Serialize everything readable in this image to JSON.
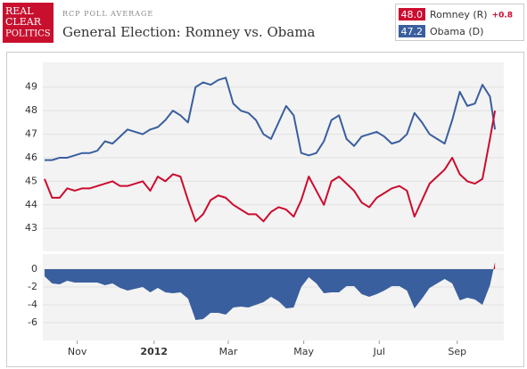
{
  "header": {
    "logo": [
      "REAL",
      "CLEAR",
      "POLITICS"
    ],
    "subtitle": "RCP POLL AVERAGE",
    "title": "General Election: Romney vs. Obama"
  },
  "chart_data": {
    "type": "line",
    "x": [
      0,
      6,
      12,
      18,
      24,
      30,
      36,
      42,
      48,
      54,
      60,
      66,
      72,
      78,
      84,
      90,
      96,
      102,
      108,
      114,
      120,
      126,
      132,
      138,
      144,
      150,
      156,
      162,
      168,
      174,
      180,
      186,
      192,
      198,
      204,
      210,
      216,
      222,
      228,
      234,
      240,
      246,
      252,
      258,
      264,
      270,
      276,
      282,
      288,
      294,
      300,
      306,
      312,
      318,
      324,
      330,
      336,
      342,
      348,
      354,
      358
    ],
    "xlim": [
      -1.4,
      365
    ],
    "xticks": [
      {
        "value": 26,
        "label": "Nov"
      },
      {
        "value": 87,
        "label": "2012"
      },
      {
        "value": 146,
        "label": "Mar"
      },
      {
        "value": 206,
        "label": "May"
      },
      {
        "value": 266,
        "label": "Jul"
      },
      {
        "value": 328,
        "label": "Sep"
      }
    ],
    "ylim": [
      42.1,
      50.05
    ],
    "yticks": [
      43,
      44,
      45,
      46,
      47,
      48,
      49
    ],
    "grid": true,
    "series": [
      {
        "name": "Romney (R)",
        "color": "#cc0c2f",
        "latest": {
          "value": 48,
          "label": "48.0"
        },
        "change": {
          "value": 0.8,
          "label": "+0.8"
        },
        "values": [
          45.1,
          44.3,
          44.3,
          44.7,
          44.6,
          44.7,
          44.7,
          44.8,
          44.9,
          45.0,
          44.8,
          44.8,
          44.9,
          45.0,
          44.6,
          45.2,
          45.0,
          45.3,
          45.2,
          44.2,
          43.3,
          43.6,
          44.2,
          44.4,
          44.3,
          44.0,
          43.8,
          43.6,
          43.6,
          43.3,
          43.7,
          43.9,
          43.8,
          43.5,
          44.2,
          45.2,
          44.6,
          44.0,
          45.0,
          45.2,
          44.9,
          44.6,
          44.1,
          43.9,
          44.3,
          44.5,
          44.7,
          44.8,
          44.6,
          43.5,
          44.2,
          44.9,
          45.2,
          45.5,
          46.0,
          45.3,
          45.0,
          44.9,
          45.1,
          46.8,
          48.0
        ]
      },
      {
        "name": "Obama (D)",
        "color": "#3a5f9e",
        "latest": {
          "value": 47.2,
          "label": "47.2"
        },
        "values": [
          45.9,
          45.9,
          46.0,
          46.0,
          46.1,
          46.2,
          46.2,
          46.3,
          46.7,
          46.6,
          46.9,
          47.2,
          47.1,
          47.0,
          47.2,
          47.3,
          47.6,
          48.0,
          47.8,
          47.5,
          49.0,
          49.2,
          49.1,
          49.3,
          49.4,
          48.3,
          48.0,
          47.9,
          47.6,
          47.0,
          46.8,
          47.5,
          48.2,
          47.8,
          46.2,
          46.1,
          46.2,
          46.7,
          47.6,
          47.8,
          46.8,
          46.5,
          46.9,
          47.0,
          47.1,
          46.9,
          46.6,
          46.7,
          47.0,
          47.9,
          47.5,
          47.0,
          46.8,
          46.6,
          47.6,
          48.8,
          48.2,
          48.3,
          49.1,
          48.6,
          47.2
        ]
      }
    ],
    "spread": {
      "type": "area",
      "positive_color": "#cc0c2f",
      "negative_color": "#3a5f9e",
      "ylim": [
        -7.8,
        1.7
      ],
      "yticks": [
        0,
        -2,
        -4,
        -6
      ],
      "values": [
        -0.8,
        -1.6,
        -1.7,
        -1.3,
        -1.5,
        -1.5,
        -1.5,
        -1.5,
        -1.8,
        -1.6,
        -2.1,
        -2.4,
        -2.2,
        -2.0,
        -2.6,
        -2.1,
        -2.6,
        -2.7,
        -2.6,
        -3.3,
        -5.7,
        -5.6,
        -4.9,
        -4.9,
        -5.1,
        -4.3,
        -4.2,
        -4.3,
        -4.0,
        -3.7,
        -3.1,
        -3.6,
        -4.4,
        -4.3,
        -2.0,
        -0.9,
        -1.6,
        -2.7,
        -2.6,
        -2.6,
        -1.9,
        -1.9,
        -2.8,
        -3.1,
        -2.8,
        -2.4,
        -1.9,
        -1.9,
        -2.4,
        -4.4,
        -3.3,
        -2.1,
        -1.6,
        -1.1,
        -1.6,
        -3.5,
        -3.2,
        -3.4,
        -4.0,
        -1.8,
        0.8
      ]
    }
  }
}
